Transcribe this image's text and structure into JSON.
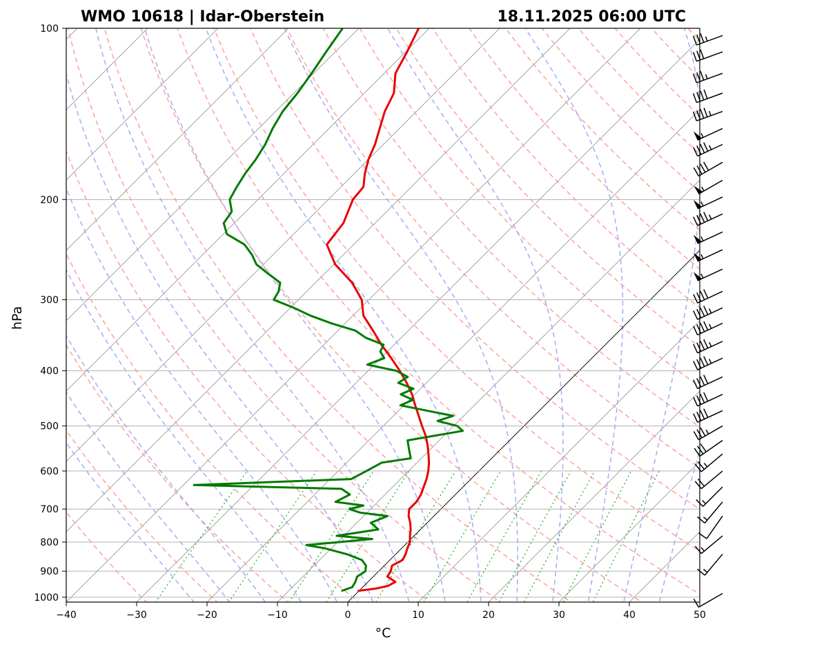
{
  "header": {
    "station": "WMO 10618 | Idar-Oberstein",
    "datetime": "18.11.2025 06:00 UTC"
  },
  "chart_data": {
    "type": "line",
    "chart_kind": "skew-T log-P diagram",
    "title_left": "WMO 10618 | Idar-Oberstein",
    "title_right": "18.11.2025 06:00 UTC",
    "xlabel": "°C",
    "ylabel": "hPa",
    "xlim": [
      -40,
      50
    ],
    "ylim": [
      1020,
      100
    ],
    "y_scale": "log",
    "x_ticks": [
      -40,
      -30,
      -20,
      -10,
      0,
      10,
      20,
      30,
      40,
      50
    ],
    "y_ticks": [
      1000,
      900,
      800,
      700,
      600,
      500,
      400,
      300,
      200,
      100
    ],
    "grid": true,
    "colors": {
      "temperature": "#e80000",
      "dewpoint": "#007a00",
      "dry_adiabats": "#ff9f9f",
      "moist_adiabats": "#a9a9f5",
      "mixing_ratio": "#2db52d",
      "isotherms": "#7f7f7f",
      "grid": "#b0b0b0",
      "wind_barbs": "#000000"
    },
    "series": [
      {
        "key": "temperature",
        "points": [
          [
            975,
            -0.2
          ],
          [
            965,
            2.2
          ],
          [
            955,
            3.4
          ],
          [
            940,
            3.9
          ],
          [
            920,
            2.0
          ],
          [
            900,
            1.7
          ],
          [
            880,
            1.1
          ],
          [
            860,
            1.8
          ],
          [
            840,
            1.4
          ],
          [
            820,
            0.8
          ],
          [
            800,
            0.3
          ],
          [
            780,
            -0.6
          ],
          [
            760,
            -1.4
          ],
          [
            740,
            -2.4
          ],
          [
            720,
            -3.6
          ],
          [
            700,
            -4.5
          ],
          [
            680,
            -4.5
          ],
          [
            660,
            -4.9
          ],
          [
            640,
            -5.6
          ],
          [
            620,
            -6.3
          ],
          [
            600,
            -7.2
          ],
          [
            580,
            -8.3
          ],
          [
            560,
            -9.6
          ],
          [
            540,
            -11.0
          ],
          [
            520,
            -12.6
          ],
          [
            500,
            -14.5
          ],
          [
            480,
            -16.4
          ],
          [
            460,
            -18.4
          ],
          [
            440,
            -20.4
          ],
          [
            420,
            -22.8
          ],
          [
            400,
            -25.5
          ],
          [
            380,
            -28.5
          ],
          [
            360,
            -31.8
          ],
          [
            340,
            -35.0
          ],
          [
            320,
            -38.5
          ],
          [
            300,
            -41.0
          ],
          [
            280,
            -44.8
          ],
          [
            260,
            -49.8
          ],
          [
            240,
            -53.8
          ],
          [
            220,
            -54.5
          ],
          [
            200,
            -56.5
          ],
          [
            190,
            -56.8
          ],
          [
            180,
            -58.5
          ],
          [
            170,
            -60.0
          ],
          [
            160,
            -61.2
          ],
          [
            150,
            -62.8
          ],
          [
            140,
            -64.5
          ],
          [
            130,
            -65.8
          ],
          [
            120,
            -68.4
          ],
          [
            110,
            -69.8
          ],
          [
            100,
            -71.5
          ]
        ]
      },
      {
        "key": "dewpoint",
        "points": [
          [
            975,
            -2.5
          ],
          [
            960,
            -1.5
          ],
          [
            940,
            -1.8
          ],
          [
            920,
            -2.3
          ],
          [
            900,
            -1.9
          ],
          [
            880,
            -2.6
          ],
          [
            860,
            -4.0
          ],
          [
            840,
            -7.0
          ],
          [
            820,
            -11.0
          ],
          [
            810,
            -14.0
          ],
          [
            790,
            -5.5
          ],
          [
            780,
            -11.0
          ],
          [
            760,
            -6.0
          ],
          [
            740,
            -8.0
          ],
          [
            720,
            -6.6
          ],
          [
            710,
            -11.0
          ],
          [
            700,
            -13.0
          ],
          [
            690,
            -11.5
          ],
          [
            680,
            -16.0
          ],
          [
            660,
            -15.0
          ],
          [
            645,
            -17.0
          ],
          [
            635,
            -38.5
          ],
          [
            620,
            -17.0
          ],
          [
            600,
            -16.0
          ],
          [
            580,
            -15.0
          ],
          [
            570,
            -11.5
          ],
          [
            550,
            -13.0
          ],
          [
            530,
            -14.5
          ],
          [
            510,
            -8.0
          ],
          [
            500,
            -9.5
          ],
          [
            490,
            -13.0
          ],
          [
            480,
            -11.5
          ],
          [
            460,
            -20.5
          ],
          [
            450,
            -19.5
          ],
          [
            440,
            -22.0
          ],
          [
            430,
            -21.0
          ],
          [
            420,
            -24.0
          ],
          [
            410,
            -23.5
          ],
          [
            400,
            -26.0
          ],
          [
            390,
            -31.0
          ],
          [
            380,
            -29.5
          ],
          [
            370,
            -31.0
          ],
          [
            360,
            -31.5
          ],
          [
            350,
            -35.0
          ],
          [
            340,
            -37.5
          ],
          [
            330,
            -42.0
          ],
          [
            320,
            -46.0
          ],
          [
            310,
            -49.5
          ],
          [
            300,
            -53.5
          ],
          [
            290,
            -54.0
          ],
          [
            280,
            -55.0
          ],
          [
            270,
            -58.0
          ],
          [
            260,
            -61.0
          ],
          [
            250,
            -63.0
          ],
          [
            240,
            -65.5
          ],
          [
            230,
            -69.5
          ],
          [
            220,
            -71.5
          ],
          [
            210,
            -72.0
          ],
          [
            200,
            -74.0
          ],
          [
            190,
            -74.8
          ],
          [
            180,
            -75.5
          ],
          [
            170,
            -76.0
          ],
          [
            160,
            -76.8
          ],
          [
            150,
            -78.0
          ],
          [
            140,
            -79.0
          ],
          [
            130,
            -79.5
          ],
          [
            120,
            -80.3
          ],
          [
            110,
            -81.3
          ],
          [
            100,
            -82.3
          ]
        ]
      }
    ],
    "wind_barbs": [
      {
        "p": 985,
        "dir": 240,
        "kt": 10
      },
      {
        "p": 840,
        "dir": 220,
        "kt": 15
      },
      {
        "p": 780,
        "dir": 230,
        "kt": 15
      },
      {
        "p": 720,
        "dir": 215,
        "kt": 10
      },
      {
        "p": 680,
        "dir": 220,
        "kt": 15
      },
      {
        "p": 640,
        "dir": 225,
        "kt": 15
      },
      {
        "p": 600,
        "dir": 230,
        "kt": 20
      },
      {
        "p": 560,
        "dir": 230,
        "kt": 25
      },
      {
        "p": 530,
        "dir": 235,
        "kt": 30
      },
      {
        "p": 500,
        "dir": 240,
        "kt": 35
      },
      {
        "p": 470,
        "dir": 245,
        "kt": 40
      },
      {
        "p": 440,
        "dir": 245,
        "kt": 40
      },
      {
        "p": 410,
        "dir": 245,
        "kt": 40
      },
      {
        "p": 380,
        "dir": 245,
        "kt": 45
      },
      {
        "p": 355,
        "dir": 245,
        "kt": 45
      },
      {
        "p": 330,
        "dir": 245,
        "kt": 45
      },
      {
        "p": 310,
        "dir": 245,
        "kt": 45
      },
      {
        "p": 290,
        "dir": 245,
        "kt": 40
      },
      {
        "p": 265,
        "dir": 245,
        "kt": 55
      },
      {
        "p": 245,
        "dir": 245,
        "kt": 55
      },
      {
        "p": 228,
        "dir": 245,
        "kt": 55
      },
      {
        "p": 212,
        "dir": 245,
        "kt": 45
      },
      {
        "p": 198,
        "dir": 245,
        "kt": 55
      },
      {
        "p": 185,
        "dir": 240,
        "kt": 55
      },
      {
        "p": 172,
        "dir": 240,
        "kt": 40
      },
      {
        "p": 160,
        "dir": 245,
        "kt": 45
      },
      {
        "p": 150,
        "dir": 245,
        "kt": 55
      },
      {
        "p": 140,
        "dir": 250,
        "kt": 45
      },
      {
        "p": 130,
        "dir": 250,
        "kt": 40
      },
      {
        "p": 120,
        "dir": 250,
        "kt": 35
      },
      {
        "p": 110,
        "dir": 250,
        "kt": 30
      },
      {
        "p": 103,
        "dir": 250,
        "kt": 35
      }
    ]
  }
}
